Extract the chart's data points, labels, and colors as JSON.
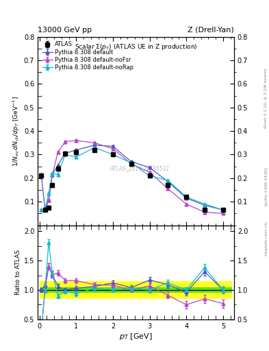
{
  "title_top_left": "13000 GeV pp",
  "title_top_right": "Z (Drell-Yan)",
  "plot_title": "Scalar Σ(p_T) (ATLAS UE in Z production)",
  "ylabel_main": "1/N_{ch} dN_{ch}/dp_T [GeV^{-1}]",
  "ylabel_ratio": "Ratio to ATLAS",
  "xlabel": "p_T [GeV]",
  "watermark": "ATLAS_2019_I1736531",
  "atlas_x": [
    0.05,
    0.15,
    0.25,
    0.35,
    0.5,
    0.7,
    1.0,
    1.5,
    2.0,
    2.5,
    3.0,
    3.5,
    4.0,
    4.5,
    5.0
  ],
  "atlas_y": [
    0.21,
    0.065,
    0.075,
    0.17,
    0.24,
    0.305,
    0.31,
    0.32,
    0.3,
    0.26,
    0.21,
    0.17,
    0.12,
    0.065,
    0.065
  ],
  "atlas_yerr": [
    0.01,
    0.005,
    0.005,
    0.008,
    0.008,
    0.008,
    0.008,
    0.008,
    0.008,
    0.008,
    0.008,
    0.008,
    0.007,
    0.005,
    0.005
  ],
  "py_default_x": [
    0.05,
    0.15,
    0.25,
    0.35,
    0.5,
    0.7,
    1.0,
    1.5,
    2.0,
    2.5,
    3.0,
    3.5,
    4.0,
    4.5,
    5.0
  ],
  "py_default_y": [
    0.21,
    0.07,
    0.105,
    0.215,
    0.255,
    0.305,
    0.32,
    0.34,
    0.335,
    0.27,
    0.245,
    0.185,
    0.115,
    0.085,
    0.065
  ],
  "py_default_yerr": [
    0.003,
    0.003,
    0.003,
    0.004,
    0.004,
    0.005,
    0.005,
    0.005,
    0.005,
    0.005,
    0.005,
    0.004,
    0.004,
    0.003,
    0.003
  ],
  "py_noFsr_x": [
    0.05,
    0.15,
    0.25,
    0.35,
    0.5,
    0.7,
    1.0,
    1.5,
    2.0,
    2.5,
    3.0,
    3.5,
    4.0,
    4.5,
    5.0
  ],
  "py_noFsr_y": [
    0.065,
    0.065,
    0.105,
    0.215,
    0.31,
    0.355,
    0.36,
    0.35,
    0.325,
    0.26,
    0.225,
    0.155,
    0.09,
    0.055,
    0.05
  ],
  "py_noFsr_yerr": [
    0.003,
    0.003,
    0.003,
    0.004,
    0.005,
    0.005,
    0.005,
    0.005,
    0.005,
    0.005,
    0.005,
    0.004,
    0.004,
    0.003,
    0.003
  ],
  "py_noRap_x": [
    0.05,
    0.15,
    0.25,
    0.35,
    0.5,
    0.7,
    1.0,
    1.5,
    2.0,
    2.5,
    3.0,
    3.5,
    4.0,
    4.5,
    5.0
  ],
  "py_noRap_y": [
    0.065,
    0.065,
    0.135,
    0.22,
    0.215,
    0.3,
    0.29,
    0.33,
    0.3,
    0.265,
    0.21,
    0.19,
    0.12,
    0.09,
    0.065
  ],
  "py_noRap_yerr": [
    0.003,
    0.003,
    0.003,
    0.004,
    0.004,
    0.005,
    0.005,
    0.005,
    0.005,
    0.005,
    0.005,
    0.004,
    0.004,
    0.003,
    0.003
  ],
  "ratio_py_default_y": [
    1.0,
    1.08,
    1.4,
    1.26,
    1.06,
    1.0,
    1.03,
    1.06,
    1.12,
    1.04,
    1.17,
    1.09,
    0.96,
    1.31,
    1.0
  ],
  "ratio_py_noFsr_y": [
    0.31,
    1.0,
    1.4,
    1.26,
    1.29,
    1.16,
    1.16,
    1.09,
    1.08,
    1.0,
    1.07,
    0.91,
    0.75,
    0.85,
    0.77
  ],
  "ratio_py_noRap_y": [
    0.31,
    1.0,
    1.8,
    1.29,
    0.9,
    0.98,
    0.94,
    1.03,
    1.0,
    1.02,
    1.0,
    1.12,
    1.0,
    1.38,
    1.0
  ],
  "ratio_py_default_yerr": [
    0.03,
    0.05,
    0.05,
    0.05,
    0.04,
    0.04,
    0.04,
    0.04,
    0.04,
    0.04,
    0.05,
    0.05,
    0.05,
    0.06,
    0.06
  ],
  "ratio_py_noFsr_yerr": [
    0.05,
    0.05,
    0.05,
    0.05,
    0.05,
    0.04,
    0.04,
    0.04,
    0.04,
    0.04,
    0.05,
    0.05,
    0.06,
    0.07,
    0.07
  ],
  "ratio_py_noRap_yerr": [
    0.05,
    0.05,
    0.06,
    0.05,
    0.04,
    0.04,
    0.04,
    0.04,
    0.04,
    0.04,
    0.05,
    0.05,
    0.05,
    0.06,
    0.06
  ],
  "color_atlas": "#000000",
  "color_py_default": "#4455cc",
  "color_py_noFsr": "#bb44cc",
  "color_py_noRap": "#11bbcc",
  "main_ylim": [
    0.0,
    0.8
  ],
  "main_yticks": [
    0.1,
    0.2,
    0.3,
    0.4,
    0.5,
    0.6,
    0.7,
    0.8
  ],
  "ratio_ylim": [
    0.5,
    2.1
  ],
  "ratio_yticks": [
    0.5,
    1.0,
    1.5,
    2.0
  ],
  "xlim": [
    -0.05,
    5.3
  ]
}
